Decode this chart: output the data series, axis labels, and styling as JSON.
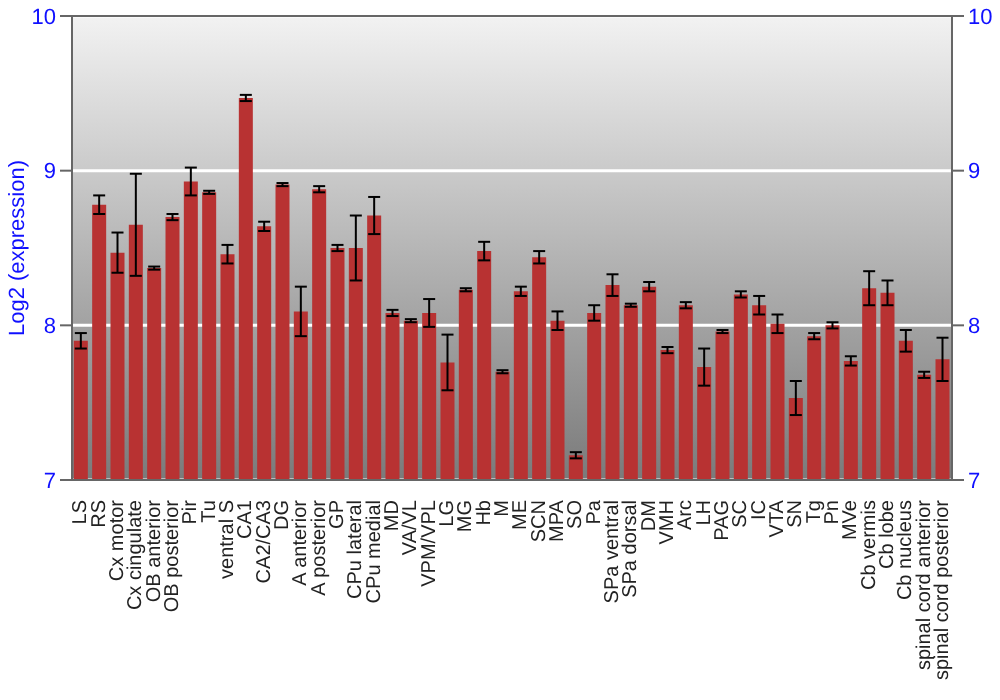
{
  "chart_data": {
    "type": "bar",
    "ylabel": "Log2 (expression)",
    "categories": [
      "LS",
      "RS",
      "Cx motor",
      "Cx cingulate",
      "OB anterior",
      "OB posterior",
      "Pir",
      "Tu",
      "ventral S",
      "CA1",
      "CA2/CA3",
      "DG",
      "A anterior",
      "A posterior",
      "GP",
      "CPu lateral",
      "CPu medial",
      "MD",
      "VA/VL",
      "VPM/VPL",
      "LG",
      "MG",
      "Hb",
      "M",
      "ME",
      "SCN",
      "MPA",
      "SO",
      "Pa",
      "SPa ventral",
      "SPa dorsal",
      "DM",
      "VMH",
      "Arc",
      "LH",
      "PAG",
      "SC",
      "IC",
      "VTA",
      "SN",
      "Tg",
      "Pn",
      "MVe",
      "Cb vermis",
      "Cb lobe",
      "Cb nucleus",
      "spinal cord anterior",
      "spinal cord posterior"
    ],
    "values": [
      7.9,
      8.78,
      8.47,
      8.65,
      8.37,
      8.7,
      8.93,
      8.86,
      8.46,
      9.47,
      8.64,
      8.91,
      8.09,
      8.88,
      8.5,
      8.5,
      8.71,
      8.08,
      8.03,
      8.08,
      7.76,
      8.23,
      8.48,
      7.7,
      8.22,
      8.44,
      8.03,
      7.16,
      8.08,
      8.26,
      8.13,
      8.25,
      7.84,
      8.13,
      7.73,
      7.96,
      8.2,
      8.13,
      8.01,
      7.53,
      7.93,
      8.0,
      7.77,
      8.24,
      8.21,
      7.9,
      7.68,
      7.78
    ],
    "errors": [
      0.05,
      0.06,
      0.13,
      0.33,
      0.01,
      0.02,
      0.09,
      0.01,
      0.06,
      0.02,
      0.03,
      0.01,
      0.16,
      0.02,
      0.02,
      0.21,
      0.12,
      0.02,
      0.01,
      0.09,
      0.18,
      0.01,
      0.06,
      0.01,
      0.03,
      0.04,
      0.06,
      0.02,
      0.05,
      0.07,
      0.01,
      0.03,
      0.02,
      0.02,
      0.12,
      0.01,
      0.02,
      0.06,
      0.06,
      0.11,
      0.02,
      0.02,
      0.03,
      0.11,
      0.08,
      0.07,
      0.02,
      0.14
    ],
    "color": "#b83232",
    "ylim": [
      7,
      10
    ],
    "yticks": [
      7,
      8,
      9,
      10
    ],
    "y2lim": [
      7,
      10
    ],
    "y2ticks": [
      7,
      8,
      9,
      10
    ],
    "grid": "y"
  }
}
